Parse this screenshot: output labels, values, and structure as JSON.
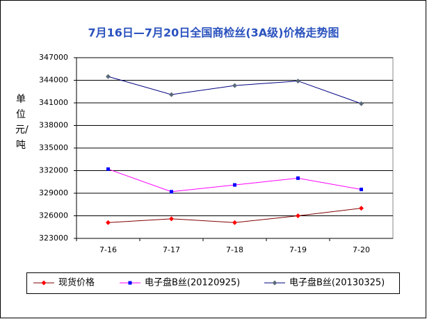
{
  "chart_data": {
    "type": "line",
    "title": "7月16日—7月20日全国商检丝(3A级)价格走势图",
    "y_label": "单位 元/吨",
    "categories": [
      "7-16",
      "7-17",
      "7-18",
      "7-19",
      "7-20"
    ],
    "series": [
      {
        "name": "现货价格",
        "color": "#800000",
        "marker_color": "#ff0000",
        "marker": "diamond",
        "values": [
          325100,
          325600,
          325100,
          326000,
          327000
        ]
      },
      {
        "name": "电子盘B丝(20120925)",
        "color": "#ff00ff",
        "marker_color": "#0000ff",
        "marker": "square",
        "values": [
          332200,
          329200,
          330100,
          331000,
          329500
        ]
      },
      {
        "name": "电子盘B丝(20130325)",
        "color": "#000080",
        "marker_color": "#5a6a7a",
        "marker": "diamond",
        "values": [
          344500,
          342100,
          343300,
          343900,
          340900
        ]
      }
    ],
    "ylim": [
      323000,
      347000
    ],
    "yticks": [
      323000,
      326000,
      329000,
      332000,
      335000,
      338000,
      341000,
      344000,
      347000
    ],
    "grid": true
  }
}
